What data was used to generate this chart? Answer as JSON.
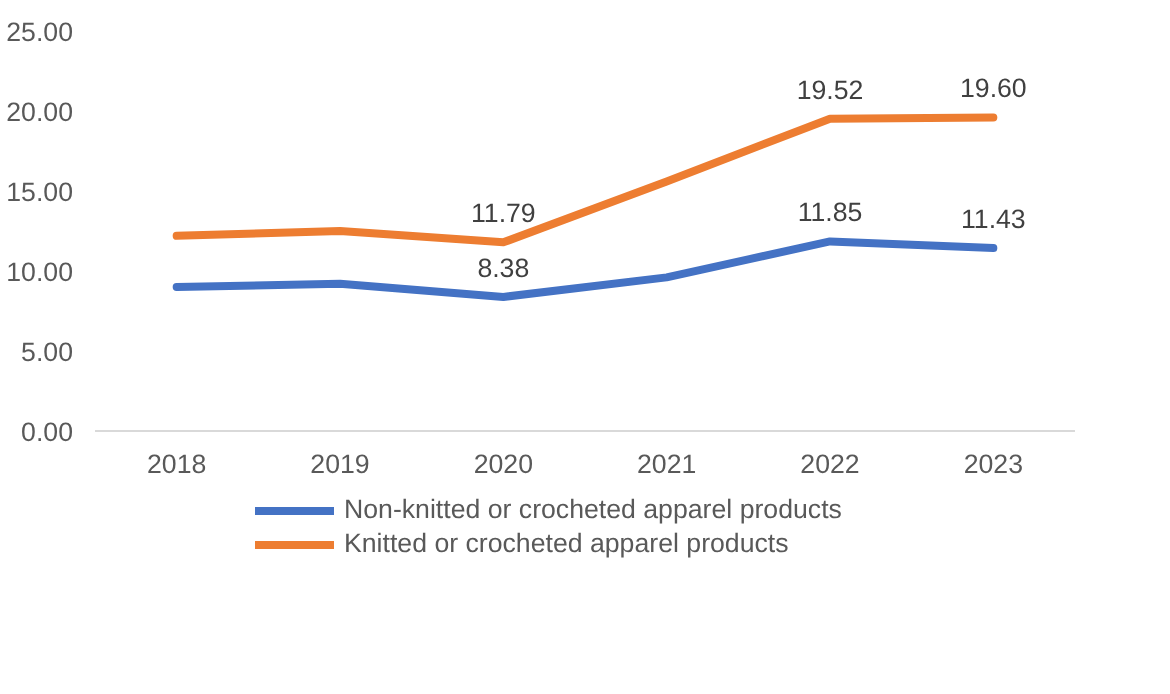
{
  "chart_data": {
    "type": "line",
    "categories": [
      "2018",
      "2019",
      "2020",
      "2021",
      "2022",
      "2023"
    ],
    "ylim": [
      0,
      25
    ],
    "yticks": [
      {
        "value": 0,
        "label": "0.00"
      },
      {
        "value": 5,
        "label": "5.00"
      },
      {
        "value": 10,
        "label": "10.00"
      },
      {
        "value": 15,
        "label": "15.00"
      },
      {
        "value": 20,
        "label": "20.00"
      },
      {
        "value": 25,
        "label": "25.00"
      }
    ],
    "grid": false,
    "legend": "bottom",
    "marker": "none",
    "line_style": "solid",
    "series": [
      {
        "name": "Non-knitted or crocheted apparel products",
        "color": "#4472c4",
        "values": [
          9.0,
          9.2,
          8.38,
          9.6,
          11.85,
          11.43
        ],
        "value_labels": [
          null,
          null,
          "8.38",
          null,
          "11.85",
          "11.43"
        ]
      },
      {
        "name": "Knitted or crocheted apparel products",
        "color": "#ed7d31",
        "values": [
          12.2,
          12.5,
          11.79,
          15.6,
          19.52,
          19.6
        ],
        "value_labels": [
          null,
          null,
          "11.79",
          null,
          "19.52",
          "19.60"
        ]
      }
    ]
  }
}
